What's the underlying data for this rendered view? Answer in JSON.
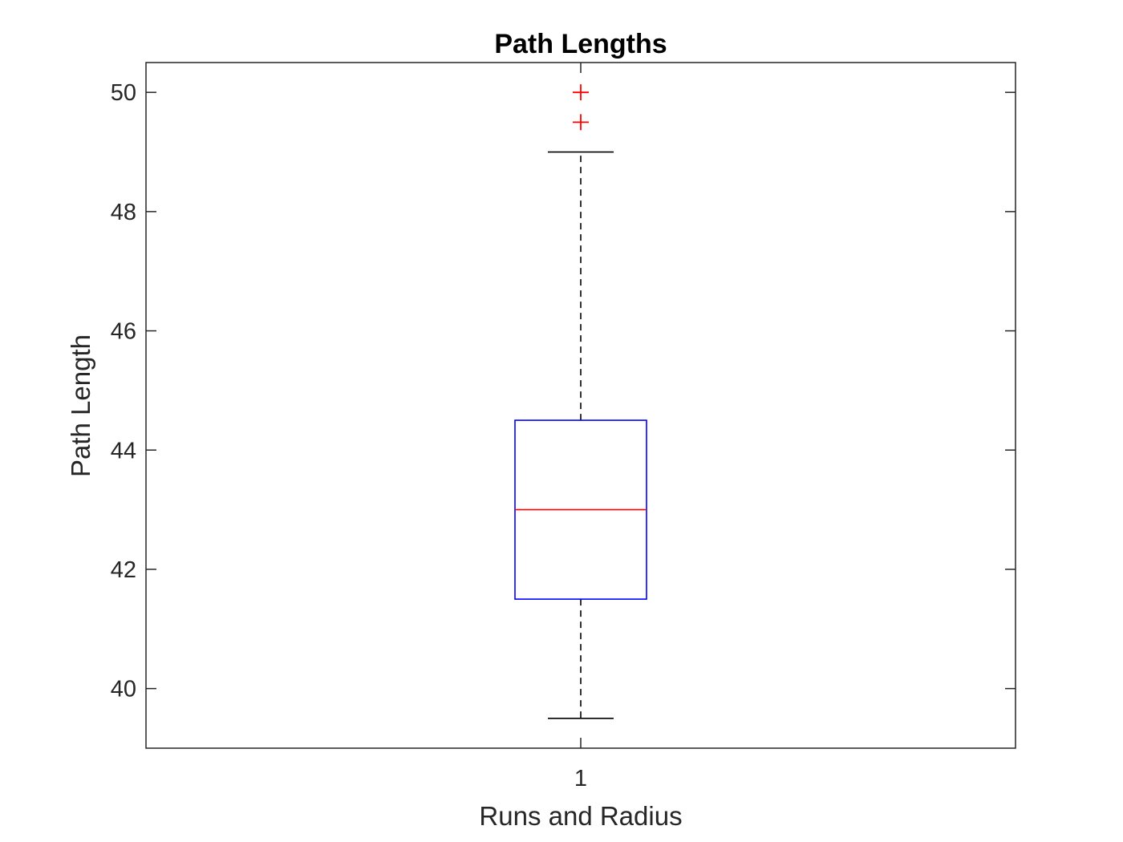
{
  "chart_data": {
    "type": "box",
    "title": "Path Lengths",
    "xlabel": "Runs and Radius",
    "ylabel": "Path Length",
    "categories": [
      "1"
    ],
    "ylim": [
      39,
      50.5
    ],
    "yticks": [
      40,
      42,
      44,
      46,
      48,
      50
    ],
    "ytick_labels": [
      "40",
      "42",
      "44",
      "46",
      "48",
      "50"
    ],
    "grid": false,
    "boxes": [
      {
        "category": "1",
        "whisker_low": 39.5,
        "q1": 41.5,
        "median": 43,
        "q3": 44.5,
        "whisker_high": 49,
        "outliers": [
          49.5,
          50
        ]
      }
    ],
    "colors": {
      "box": "#0000ff",
      "median": "#ff0000",
      "outlier": "#ff0000",
      "whisker": "#000000",
      "axes": "#262626"
    }
  }
}
